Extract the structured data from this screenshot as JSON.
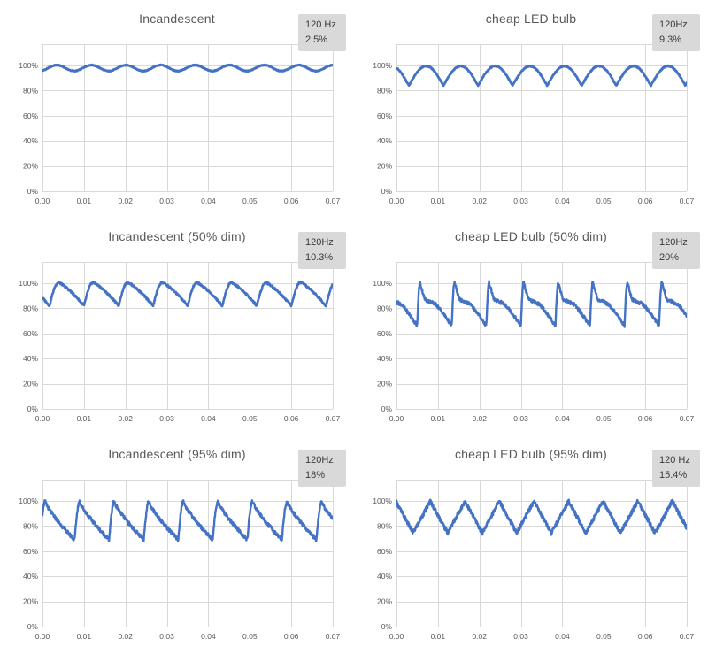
{
  "figure": {
    "background_color": "#ffffff",
    "grid": {
      "columns": 2,
      "rows": 3
    }
  },
  "colors": {
    "line": "#4472C4",
    "gridline": "#d9d9d9",
    "tick_text": "#595959",
    "title_text": "#595959",
    "badge_background": "#d9d9d9",
    "badge_text": "#3a3a3a"
  },
  "chart_data": [
    {
      "type": "line",
      "title": "Incandescent",
      "badge": {
        "line1": "120 Hz",
        "line2": "2.5%"
      },
      "frequency_hz": 120,
      "flicker_percent": 2.5,
      "x_range_s": [
        0,
        0.07
      ],
      "x_ticks": [
        "0.00",
        "0.01",
        "0.02",
        "0.03",
        "0.04",
        "0.05",
        "0.06",
        "0.07"
      ],
      "y_ticks": [
        "0%",
        "20%",
        "40%",
        "60%",
        "80%",
        "100%"
      ],
      "y_tick_percents": [
        0,
        20,
        40,
        60,
        80,
        100
      ],
      "y_axis_top_percent": 117,
      "grid_on": true,
      "legend": "none",
      "waveform": {
        "shape": "sine",
        "min_percent": 95.6,
        "max_percent": 100.3,
        "cycle_start_s": -0.0007,
        "noise_percent": 0.3,
        "stroke_width": 2.8
      }
    },
    {
      "type": "line",
      "title": "cheap LED bulb",
      "badge": {
        "line1": "120Hz",
        "line2": "9.3%"
      },
      "frequency_hz": 120,
      "flicker_percent": 9.3,
      "x_range_s": [
        0,
        0.07
      ],
      "x_ticks": [
        "0.00",
        "0.01",
        "0.02",
        "0.03",
        "0.04",
        "0.05",
        "0.06",
        "0.07"
      ],
      "y_ticks": [
        "0%",
        "20%",
        "40%",
        "60%",
        "80%",
        "100%"
      ],
      "y_tick_percents": [
        0,
        20,
        40,
        60,
        80,
        100
      ],
      "y_axis_top_percent": 117,
      "grid_on": true,
      "legend": "none",
      "waveform": {
        "shape": "abs-sine",
        "min_percent": 84,
        "max_percent": 99.5,
        "cycle_start_s": 0.003,
        "noise_percent": 0.4,
        "stroke_width": 2.8
      }
    },
    {
      "type": "line",
      "title": "Incandescent (50% dim)",
      "badge": {
        "line1": "120Hz",
        "line2": "10.3%"
      },
      "frequency_hz": 120,
      "flicker_percent": 10.3,
      "x_range_s": [
        0,
        0.07
      ],
      "x_ticks": [
        "0.00",
        "0.01",
        "0.02",
        "0.03",
        "0.04",
        "0.05",
        "0.06",
        "0.07"
      ],
      "y_ticks": [
        "0%",
        "20%",
        "40%",
        "60%",
        "80%",
        "100%"
      ],
      "y_tick_percents": [
        0,
        20,
        40,
        60,
        80,
        100
      ],
      "y_axis_top_percent": 117,
      "grid_on": true,
      "legend": "none",
      "waveform": {
        "shape": "sharkfin",
        "min_percent": 82,
        "max_percent": 100.5,
        "cycle_start_s": 0.0017,
        "noise_percent": 0.8,
        "stroke_width": 2.6
      }
    },
    {
      "type": "line",
      "title": "cheap LED bulb (50% dim)",
      "badge": {
        "line1": "120Hz",
        "line2": "20%"
      },
      "frequency_hz": 120,
      "flicker_percent": 20,
      "x_range_s": [
        0,
        0.07
      ],
      "x_ticks": [
        "0.00",
        "0.01",
        "0.02",
        "0.03",
        "0.04",
        "0.05",
        "0.06",
        "0.07"
      ],
      "y_ticks": [
        "0%",
        "20%",
        "40%",
        "60%",
        "80%",
        "100%"
      ],
      "y_tick_percents": [
        0,
        20,
        40,
        60,
        80,
        100
      ],
      "y_axis_top_percent": 117,
      "grid_on": true,
      "legend": "none",
      "waveform": {
        "shape": "spike-plateau",
        "min_percent": 66,
        "max_percent": 100.5,
        "plateau_start_percent": 87,
        "plateau_end_percent": 83.5,
        "cycle_start_s": 0.005,
        "noise_percent": 1.4,
        "stroke_width": 2.4
      }
    },
    {
      "type": "line",
      "title": "Incandescent (95% dim)",
      "badge": {
        "line1": "120Hz",
        "line2": "18%"
      },
      "frequency_hz": 120,
      "flicker_percent": 18,
      "x_range_s": [
        0,
        0.07
      ],
      "x_ticks": [
        "0.00",
        "0.01",
        "0.02",
        "0.03",
        "0.04",
        "0.05",
        "0.06",
        "0.07"
      ],
      "y_ticks": [
        "0%",
        "20%",
        "40%",
        "60%",
        "80%",
        "100%"
      ],
      "y_tick_percents": [
        0,
        20,
        40,
        60,
        80,
        100
      ],
      "y_axis_top_percent": 117,
      "grid_on": true,
      "legend": "none",
      "waveform": {
        "shape": "sawtooth",
        "min_percent": 69,
        "max_percent": 99.5,
        "cycle_start_s": -0.0006,
        "noise_percent": 1.5,
        "stroke_width": 2.4
      }
    },
    {
      "type": "line",
      "title": "cheap LED bulb (95% dim)",
      "badge": {
        "line1": "120 Hz",
        "line2": "15.4%"
      },
      "frequency_hz": 120,
      "flicker_percent": 15.4,
      "x_range_s": [
        0,
        0.07
      ],
      "x_ticks": [
        "0.00",
        "0.01",
        "0.02",
        "0.03",
        "0.04",
        "0.05",
        "0.06",
        "0.07"
      ],
      "y_ticks": [
        "0%",
        "20%",
        "40%",
        "60%",
        "80%",
        "100%"
      ],
      "y_tick_percents": [
        0,
        20,
        40,
        60,
        80,
        100
      ],
      "y_axis_top_percent": 117,
      "grid_on": true,
      "legend": "none",
      "waveform": {
        "shape": "triangle",
        "min_percent": 74.5,
        "max_percent": 99.8,
        "cycle_start_s": 0.004,
        "noise_percent": 1.6,
        "stroke_width": 2.6
      }
    }
  ]
}
